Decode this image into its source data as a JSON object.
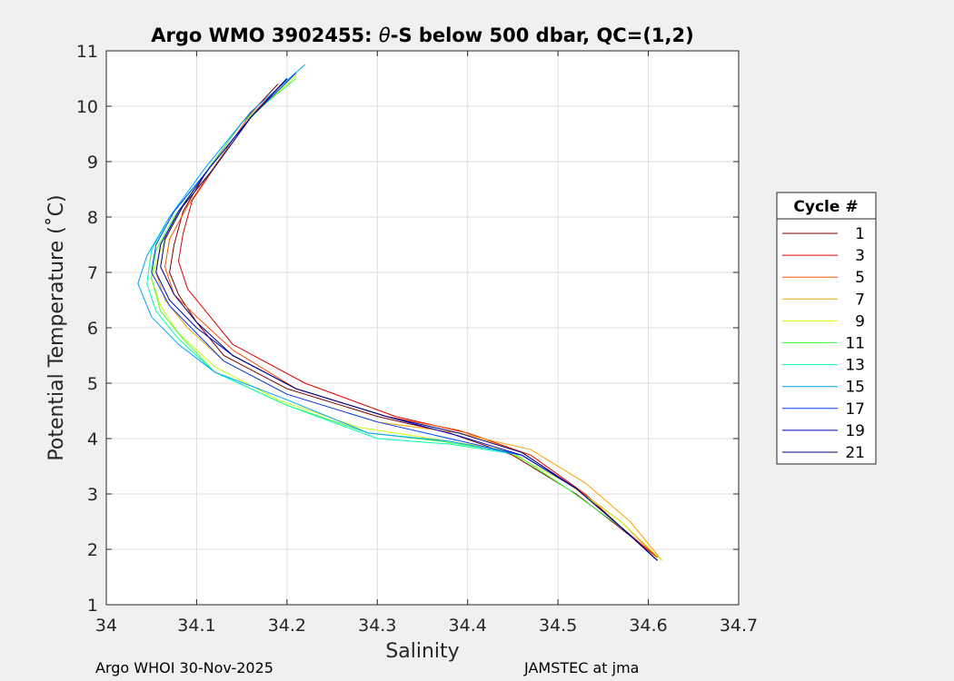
{
  "chart_data": {
    "type": "line",
    "title_prefix": "Argo WMO 3902455: ",
    "title_theta": "θ",
    "title_suffix": "-S below 500 dbar,  QC=(1,2)",
    "xlabel": "Salinity",
    "ylabel": "Potential Temperature (˚C)",
    "xlim": [
      34.0,
      34.7
    ],
    "ylim": [
      1,
      11
    ],
    "xticks": [
      "34",
      "34.1",
      "34.2",
      "34.3",
      "34.4",
      "34.5",
      "34.6",
      "34.7"
    ],
    "yticks": [
      "1",
      "2",
      "3",
      "4",
      "5",
      "6",
      "7",
      "8",
      "9",
      "10",
      "11"
    ],
    "grid": true,
    "legend": {
      "title": "Cycle #",
      "placement": "right",
      "entries": [
        "1",
        "3",
        "5",
        "7",
        "9",
        "11",
        "13",
        "15",
        "17",
        "19",
        "21"
      ]
    },
    "series": [
      {
        "name": "1",
        "color": "#7f0000",
        "x": [
          34.19,
          34.15,
          34.11,
          34.085,
          34.075,
          34.07,
          34.08,
          34.1,
          34.13,
          34.2,
          34.3,
          34.38,
          34.45,
          34.52,
          34.56,
          34.61
        ],
        "y": [
          10.4,
          9.7,
          8.8,
          8.1,
          7.5,
          7.0,
          6.6,
          6.1,
          5.5,
          4.9,
          4.4,
          4.1,
          3.7,
          3.0,
          2.5,
          1.85
        ]
      },
      {
        "name": "3",
        "color": "#e00000",
        "x": [
          34.21,
          34.16,
          34.12,
          34.095,
          34.085,
          34.08,
          34.09,
          34.11,
          34.14,
          34.22,
          34.32,
          34.4,
          34.47,
          34.53,
          34.57,
          34.61
        ],
        "y": [
          10.6,
          9.8,
          8.9,
          8.3,
          7.7,
          7.2,
          6.7,
          6.3,
          5.7,
          5.0,
          4.4,
          4.1,
          3.7,
          3.0,
          2.4,
          1.85
        ]
      },
      {
        "name": "5",
        "color": "#ff5000",
        "x": [
          34.2,
          34.155,
          34.115,
          34.09,
          34.07,
          34.065,
          34.075,
          34.1,
          34.14,
          34.21,
          34.31,
          34.39,
          34.46,
          34.52,
          34.57,
          34.61
        ],
        "y": [
          10.5,
          9.75,
          8.8,
          8.2,
          7.6,
          7.1,
          6.6,
          6.2,
          5.6,
          4.9,
          4.4,
          4.15,
          3.75,
          3.1,
          2.5,
          1.85
        ]
      },
      {
        "name": "7",
        "color": "#ffa000",
        "x": [
          34.2,
          34.16,
          34.12,
          34.08,
          34.06,
          34.055,
          34.065,
          34.09,
          34.13,
          34.2,
          34.3,
          34.39,
          34.47,
          34.53,
          34.58,
          34.615
        ],
        "y": [
          10.5,
          9.8,
          8.9,
          8.1,
          7.5,
          7.0,
          6.5,
          6.0,
          5.4,
          4.8,
          4.3,
          4.1,
          3.8,
          3.2,
          2.5,
          1.8
        ]
      },
      {
        "name": "9",
        "color": "#c8ff00",
        "x": [
          34.21,
          34.16,
          34.12,
          34.08,
          34.06,
          34.05,
          34.06,
          34.08,
          34.12,
          34.19,
          34.28,
          34.36,
          34.44,
          34.51,
          34.57,
          34.615
        ],
        "y": [
          10.55,
          9.8,
          8.9,
          8.1,
          7.4,
          6.9,
          6.4,
          5.9,
          5.3,
          4.7,
          4.2,
          4.0,
          3.8,
          3.2,
          2.5,
          1.8
        ]
      },
      {
        "name": "11",
        "color": "#40ff40",
        "x": [
          34.21,
          34.15,
          34.11,
          34.075,
          34.055,
          34.05,
          34.06,
          34.085,
          34.12,
          34.2,
          34.29,
          34.37,
          34.45,
          34.51,
          34.57,
          34.61
        ],
        "y": [
          10.5,
          9.7,
          8.8,
          8.0,
          7.4,
          6.9,
          6.3,
          5.8,
          5.2,
          4.6,
          4.1,
          3.95,
          3.75,
          3.1,
          2.4,
          1.8
        ]
      },
      {
        "name": "13",
        "color": "#00ffb0",
        "x": [
          34.21,
          34.16,
          34.11,
          34.07,
          34.05,
          34.045,
          34.055,
          34.08,
          34.12,
          34.2,
          34.3,
          34.38,
          34.46,
          34.52,
          34.57,
          34.61
        ],
        "y": [
          10.6,
          9.8,
          8.8,
          8.0,
          7.4,
          6.8,
          6.3,
          5.8,
          5.2,
          4.6,
          4.0,
          3.9,
          3.7,
          3.1,
          2.4,
          1.8
        ]
      },
      {
        "name": "15",
        "color": "#00a0ff",
        "x": [
          34.22,
          34.16,
          34.11,
          34.07,
          34.045,
          34.035,
          34.05,
          34.08,
          34.12,
          34.2,
          34.29,
          34.38,
          34.46,
          34.52,
          34.57,
          34.61
        ],
        "y": [
          10.75,
          9.9,
          8.9,
          8.0,
          7.3,
          6.8,
          6.2,
          5.7,
          5.2,
          4.7,
          4.1,
          3.95,
          3.7,
          3.1,
          2.4,
          1.8
        ]
      },
      {
        "name": "17",
        "color": "#0040ff",
        "x": [
          34.21,
          34.16,
          34.11,
          34.075,
          34.055,
          34.05,
          34.07,
          34.1,
          34.13,
          34.2,
          34.3,
          34.38,
          34.46,
          34.52,
          34.57,
          34.61
        ],
        "y": [
          10.6,
          9.8,
          8.8,
          8.1,
          7.5,
          7.0,
          6.4,
          5.9,
          5.4,
          4.8,
          4.3,
          4.0,
          3.7,
          3.1,
          2.4,
          1.8
        ]
      },
      {
        "name": "19",
        "color": "#0000c8",
        "x": [
          34.2,
          34.16,
          34.115,
          34.08,
          34.06,
          34.055,
          34.07,
          34.1,
          34.14,
          34.21,
          34.31,
          34.39,
          34.46,
          34.52,
          34.57,
          34.61
        ],
        "y": [
          10.5,
          9.8,
          8.9,
          8.1,
          7.5,
          7.0,
          6.5,
          6.0,
          5.5,
          4.9,
          4.4,
          4.05,
          3.7,
          3.1,
          2.4,
          1.8
        ]
      },
      {
        "name": "21",
        "color": "#000080",
        "x": [
          34.2,
          34.16,
          34.12,
          34.085,
          34.065,
          34.06,
          34.075,
          34.1,
          34.14,
          34.21,
          34.31,
          34.39,
          34.46,
          34.52,
          34.57,
          34.61
        ],
        "y": [
          10.5,
          9.8,
          8.9,
          8.2,
          7.6,
          7.1,
          6.6,
          6.1,
          5.5,
          4.9,
          4.4,
          4.1,
          3.75,
          3.1,
          2.4,
          1.8
        ]
      }
    ]
  },
  "footer": {
    "left": "Argo WHOI 30-Nov-2025",
    "right": "JAMSTEC at jma"
  }
}
